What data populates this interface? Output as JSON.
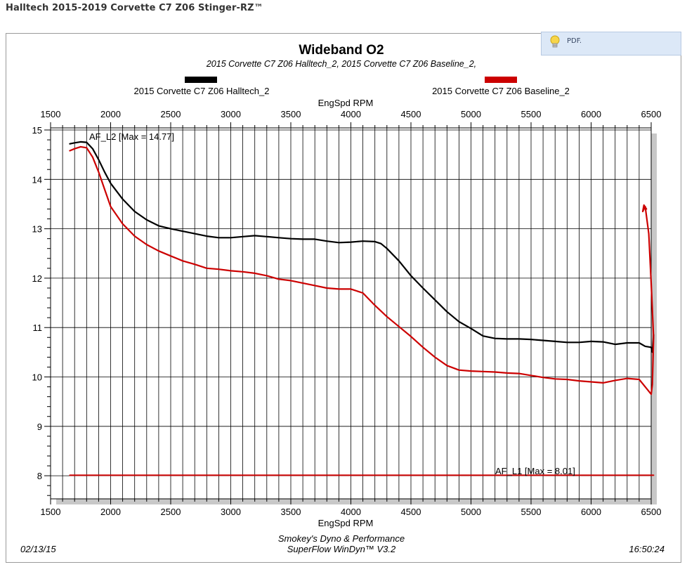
{
  "header": {
    "title": "Halltech 2015-2019 Corvette C7 Z06 Stinger-RZ™"
  },
  "pdf_button": {
    "label": "PDF.",
    "icon": "lightbulb-icon"
  },
  "chart_data": {
    "type": "line",
    "title": "Wideband O2",
    "subtitle": "2015 Corvette C7 Z06 Halltech_2, 2015 Corvette C7 Z06 Baseline_2,",
    "xlabel_top": "EngSpd RPM",
    "xlabel": "EngSpd RPM",
    "ylabel": "",
    "xlim": [
      1500,
      6500
    ],
    "ylim": [
      7.5,
      15
    ],
    "x_ticks": [
      1500,
      2000,
      2500,
      3000,
      3500,
      4000,
      4500,
      5000,
      5500,
      6000,
      6500
    ],
    "y_ticks": [
      8,
      9,
      10,
      11,
      12,
      13,
      14,
      15
    ],
    "grid": true,
    "legend": {
      "placement": "top",
      "entries": [
        {
          "name": "2015 Corvette C7 Z06 Halltech_2",
          "color": "#000000"
        },
        {
          "name": "2015 Corvette C7 Z06 Baseline_2",
          "color": "#cc0000"
        }
      ]
    },
    "annotations": {
      "af_l2": "AF_L2  [Max = 14.77]",
      "af_l1": "AF_L1  [Max = 8.01]"
    },
    "series": [
      {
        "name": "2015 Corvette C7 Z06 Halltech_2",
        "channel": "AF_L2",
        "color": "#000000",
        "x": [
          1660,
          1700,
          1750,
          1800,
          1850,
          1900,
          1950,
          2000,
          2100,
          2200,
          2300,
          2400,
          2500,
          2600,
          2700,
          2800,
          2900,
          3000,
          3100,
          3200,
          3300,
          3400,
          3500,
          3600,
          3700,
          3800,
          3900,
          4000,
          4100,
          4200,
          4250,
          4300,
          4400,
          4500,
          4600,
          4700,
          4800,
          4900,
          5000,
          5100,
          5200,
          5300,
          5400,
          5500,
          5600,
          5700,
          5800,
          5900,
          6000,
          6100,
          6200,
          6300,
          6400,
          6450,
          6500,
          6510,
          6520
        ],
        "values": [
          14.72,
          14.74,
          14.76,
          14.75,
          14.62,
          14.4,
          14.15,
          13.92,
          13.6,
          13.35,
          13.18,
          13.06,
          13.0,
          12.95,
          12.9,
          12.85,
          12.82,
          12.82,
          12.84,
          12.86,
          12.84,
          12.82,
          12.8,
          12.79,
          12.79,
          12.75,
          12.72,
          12.73,
          12.75,
          12.74,
          12.7,
          12.6,
          12.35,
          12.05,
          11.8,
          11.56,
          11.32,
          11.12,
          10.98,
          10.83,
          10.78,
          10.77,
          10.77,
          10.76,
          10.74,
          10.72,
          10.7,
          10.7,
          10.72,
          10.71,
          10.66,
          10.69,
          10.69,
          10.62,
          10.6,
          10.5,
          10.85
        ]
      },
      {
        "name": "2015 Corvette C7 Z06 Baseline_2",
        "channel": "AF_L2",
        "color": "#cc0000",
        "x": [
          1660,
          1700,
          1750,
          1800,
          1850,
          1900,
          1950,
          2000,
          2100,
          2200,
          2300,
          2400,
          2500,
          2600,
          2700,
          2800,
          2900,
          3000,
          3100,
          3200,
          3300,
          3400,
          3500,
          3600,
          3700,
          3800,
          3900,
          4000,
          4100,
          4200,
          4300,
          4400,
          4500,
          4600,
          4700,
          4800,
          4900,
          5000,
          5100,
          5200,
          5300,
          5400,
          5500,
          5600,
          5700,
          5800,
          5900,
          6000,
          6100,
          6200,
          6300,
          6400,
          6450,
          6500,
          6510,
          6520,
          6500,
          6480,
          6450,
          6430,
          6440,
          6460
        ],
        "values": [
          14.58,
          14.62,
          14.66,
          14.64,
          14.45,
          14.15,
          13.8,
          13.45,
          13.1,
          12.85,
          12.68,
          12.55,
          12.45,
          12.35,
          12.28,
          12.2,
          12.18,
          12.15,
          12.13,
          12.1,
          12.05,
          11.98,
          11.95,
          11.9,
          11.85,
          11.8,
          11.78,
          11.78,
          11.7,
          11.45,
          11.22,
          11.02,
          10.82,
          10.6,
          10.4,
          10.23,
          10.14,
          10.12,
          10.11,
          10.1,
          10.08,
          10.07,
          10.03,
          9.99,
          9.96,
          9.95,
          9.92,
          9.9,
          9.88,
          9.93,
          9.97,
          9.95,
          9.8,
          9.65,
          9.85,
          10.8,
          11.9,
          12.9,
          13.45,
          13.35,
          13.48,
          13.4
        ]
      },
      {
        "name": "",
        "channel": "AF_L1",
        "color": "#cc0000",
        "x": [
          1660,
          6520
        ],
        "values": [
          8.01,
          8.01
        ]
      }
    ]
  },
  "footer": {
    "date": "02/13/15",
    "center_line1": "Smokey's Dyno & Performance",
    "center_line2": "SuperFlow WinDyn™ V3.2",
    "time": "16:50:24"
  }
}
